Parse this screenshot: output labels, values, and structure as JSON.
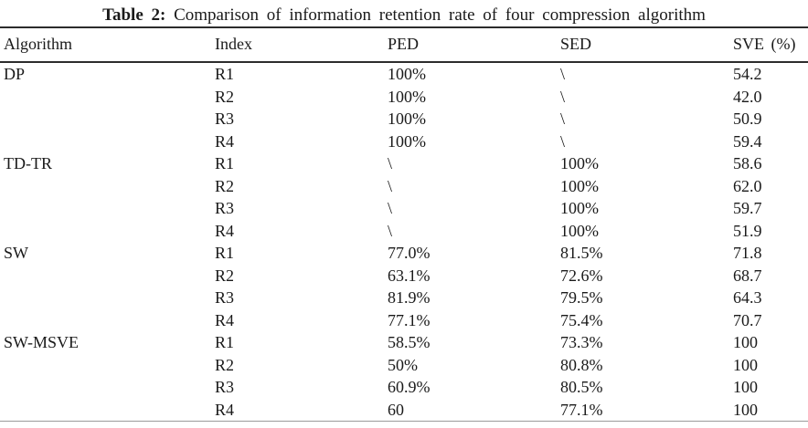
{
  "title": {
    "label": "Table 2:",
    "text": "Comparison of information retention rate of four compression algorithm"
  },
  "table": {
    "columns": [
      "Algorithm",
      "Index",
      "PED",
      "SED",
      "SVE (%)"
    ],
    "rows": [
      [
        "DP",
        "R1",
        "100%",
        "\\",
        "54.2"
      ],
      [
        "",
        "R2",
        "100%",
        "\\",
        "42.0"
      ],
      [
        "",
        "R3",
        "100%",
        "\\",
        "50.9"
      ],
      [
        "",
        "R4",
        "100%",
        "\\",
        "59.4"
      ],
      [
        "TD-TR",
        "R1",
        "\\",
        "100%",
        "58.6"
      ],
      [
        "",
        "R2",
        "\\",
        "100%",
        "62.0"
      ],
      [
        "",
        "R3",
        "\\",
        "100%",
        "59.7"
      ],
      [
        "",
        "R4",
        "\\",
        "100%",
        "51.9"
      ],
      [
        "SW",
        "R1",
        "77.0%",
        "81.5%",
        "71.8"
      ],
      [
        "",
        "R2",
        "63.1%",
        "72.6%",
        "68.7"
      ],
      [
        "",
        "R3",
        "81.9%",
        "79.5%",
        "64.3"
      ],
      [
        "",
        "R4",
        "77.1%",
        "75.4%",
        "70.7"
      ],
      [
        "SW-MSVE",
        "R1",
        "58.5%",
        "73.3%",
        "100"
      ],
      [
        "",
        "R2",
        "50%",
        "80.8%",
        "100"
      ],
      [
        "",
        "R3",
        "60.9%",
        "80.5%",
        "100"
      ],
      [
        "",
        "R4",
        "60",
        "77.1%",
        "100"
      ]
    ]
  }
}
